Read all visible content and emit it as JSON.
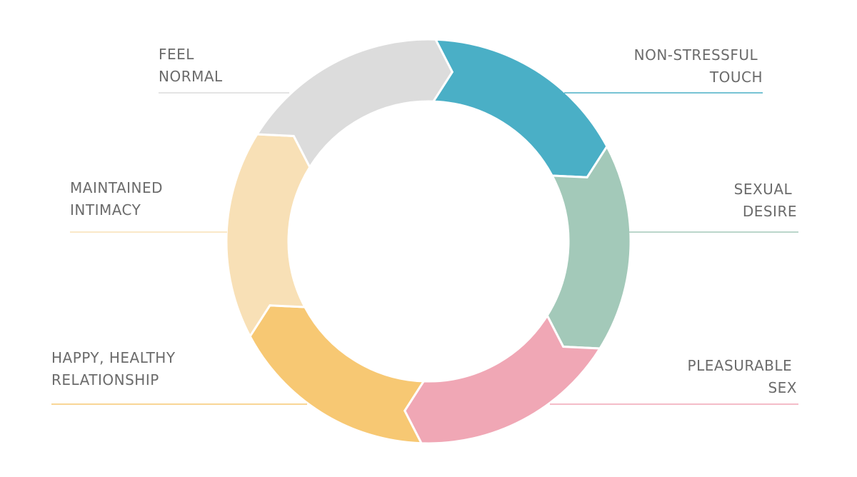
{
  "nodes": [
    {
      "lines": [
        "NON-STRESSFUL",
        "TOUCH"
      ]
    },
    {
      "lines": [
        "SEXUAL",
        "DESIRE"
      ]
    },
    {
      "lines": [
        "PLEASURABLE",
        "SEX"
      ]
    },
    {
      "lines": [
        "HAPPY, HEALTHY",
        "RELATIONSHIP"
      ]
    },
    {
      "lines": [
        "MAINTAINED",
        "INTIMACY"
      ]
    },
    {
      "lines": [
        "FEEL",
        "NORMAL"
      ]
    }
  ]
}
